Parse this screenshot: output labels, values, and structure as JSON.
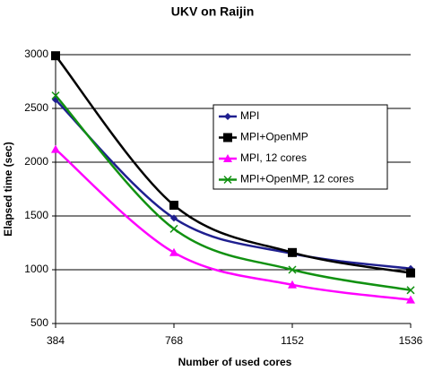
{
  "chart_data": {
    "type": "line",
    "title": "UKV on Raijin",
    "x_label": "Number of used cores",
    "y_label": "Elapsed time (sec)",
    "x": [
      384,
      768,
      1152,
      1536
    ],
    "xlim": [
      384,
      1536
    ],
    "xticks": [
      384,
      768,
      1152,
      1536
    ],
    "ylim": [
      500,
      3000
    ],
    "yticks": [
      500,
      1000,
      1500,
      2000,
      2500,
      3000
    ],
    "grid": true,
    "legend": "right",
    "series": [
      {
        "name": "MPI",
        "color": "#1f1f8f",
        "marker": "diamond",
        "values": [
          2580,
          1480,
          1150,
          1010
        ]
      },
      {
        "name": "MPI+OpenMP",
        "color": "#000000",
        "marker": "square",
        "values": [
          2990,
          1600,
          1160,
          970
        ]
      },
      {
        "name": "MPI, 12 cores",
        "color": "#ff00ff",
        "marker": "triangle",
        "values": [
          2120,
          1160,
          860,
          720
        ]
      },
      {
        "name": "MPI+OpenMP, 12 cores",
        "color": "#119111",
        "marker": "x",
        "values": [
          2620,
          1380,
          1000,
          810
        ]
      }
    ]
  }
}
